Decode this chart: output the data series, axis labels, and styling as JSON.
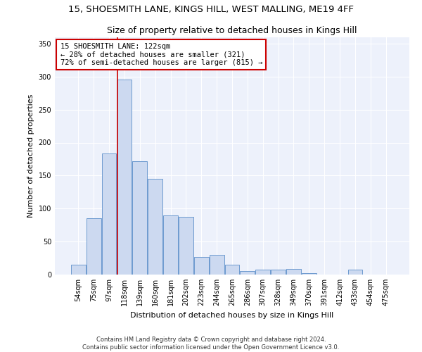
{
  "title": "15, SHOESMITH LANE, KINGS HILL, WEST MALLING, ME19 4FF",
  "subtitle": "Size of property relative to detached houses in Kings Hill",
  "xlabel": "Distribution of detached houses by size in Kings Hill",
  "ylabel": "Number of detached properties",
  "bar_labels": [
    "54sqm",
    "75sqm",
    "97sqm",
    "118sqm",
    "139sqm",
    "160sqm",
    "181sqm",
    "202sqm",
    "223sqm",
    "244sqm",
    "265sqm",
    "286sqm",
    "307sqm",
    "328sqm",
    "349sqm",
    "370sqm",
    "391sqm",
    "412sqm",
    "433sqm",
    "454sqm",
    "475sqm"
  ],
  "bar_values": [
    15,
    85,
    183,
    295,
    172,
    145,
    90,
    88,
    27,
    30,
    15,
    5,
    7,
    8,
    9,
    2,
    0,
    0,
    7,
    0,
    0
  ],
  "bar_color": "#ccd9f0",
  "bar_edge_color": "#5b8fc9",
  "vline_x_idx": 3,
  "annotation_text": "15 SHOESMITH LANE: 122sqm\n← 28% of detached houses are smaller (321)\n72% of semi-detached houses are larger (815) →",
  "annotation_box_color": "#ffffff",
  "annotation_box_edge_color": "#cc0000",
  "vline_color": "#cc0000",
  "footer_line1": "Contains HM Land Registry data © Crown copyright and database right 2024.",
  "footer_line2": "Contains public sector information licensed under the Open Government Licence v3.0.",
  "ylim": [
    0,
    360
  ],
  "yticks": [
    0,
    50,
    100,
    150,
    200,
    250,
    300,
    350
  ],
  "bg_color": "#edf1fb",
  "title_fontsize": 9.5,
  "subtitle_fontsize": 9,
  "axis_label_fontsize": 8,
  "tick_fontsize": 7,
  "annotation_fontsize": 7.5
}
